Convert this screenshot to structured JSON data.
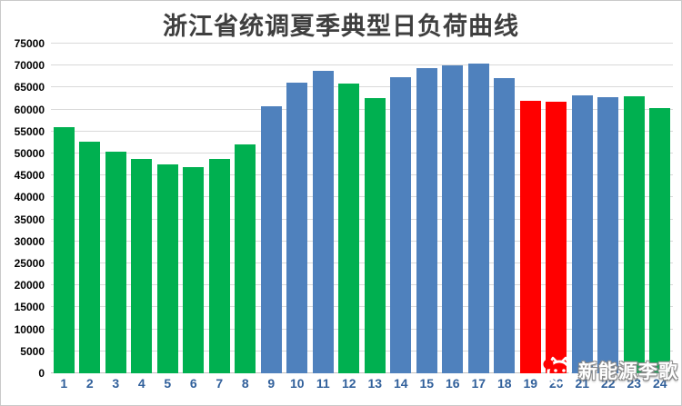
{
  "chart_data": {
    "type": "bar",
    "title": "浙江省统调夏季典型日负荷曲线",
    "xlabel": "",
    "ylabel": "",
    "categories": [
      1,
      2,
      3,
      4,
      5,
      6,
      7,
      8,
      9,
      10,
      11,
      12,
      13,
      14,
      15,
      16,
      17,
      18,
      19,
      20,
      21,
      22,
      23,
      24
    ],
    "values": [
      55900,
      52700,
      50500,
      48700,
      47500,
      47000,
      48800,
      52100,
      60700,
      66200,
      68800,
      66000,
      62600,
      67300,
      69400,
      70000,
      70400,
      67100,
      61900,
      61800,
      63300,
      62900,
      63000,
      60400
    ],
    "bar_colors": [
      "green",
      "green",
      "green",
      "green",
      "green",
      "green",
      "green",
      "green",
      "blue",
      "blue",
      "blue",
      "green",
      "green",
      "blue",
      "blue",
      "blue",
      "blue",
      "blue",
      "red",
      "red",
      "blue",
      "blue",
      "green",
      "green"
    ],
    "colors": {
      "green": "#00B050",
      "blue": "#4F81BD",
      "red": "#FF0000"
    },
    "ylim": [
      0,
      75000
    ],
    "yticks": [
      0,
      5000,
      10000,
      15000,
      20000,
      25000,
      30000,
      35000,
      40000,
      45000,
      50000,
      55000,
      60000,
      65000,
      70000,
      75000
    ],
    "grid": "horizontal",
    "legend_position": "none"
  },
  "watermark": {
    "text": "新能源李歌",
    "logo_icon": "cat-icon",
    "logo_dot_color": "#FF0000",
    "logo_line_color": "#ffffff"
  },
  "style_colors": {
    "grid_color": "#D9D9D9",
    "axis_color": "#BFBFBF",
    "x_tick_color": "#31609B",
    "y_tick_color": "#000000",
    "title_color": "#3F3F3F",
    "background": "#FFFFFF"
  }
}
